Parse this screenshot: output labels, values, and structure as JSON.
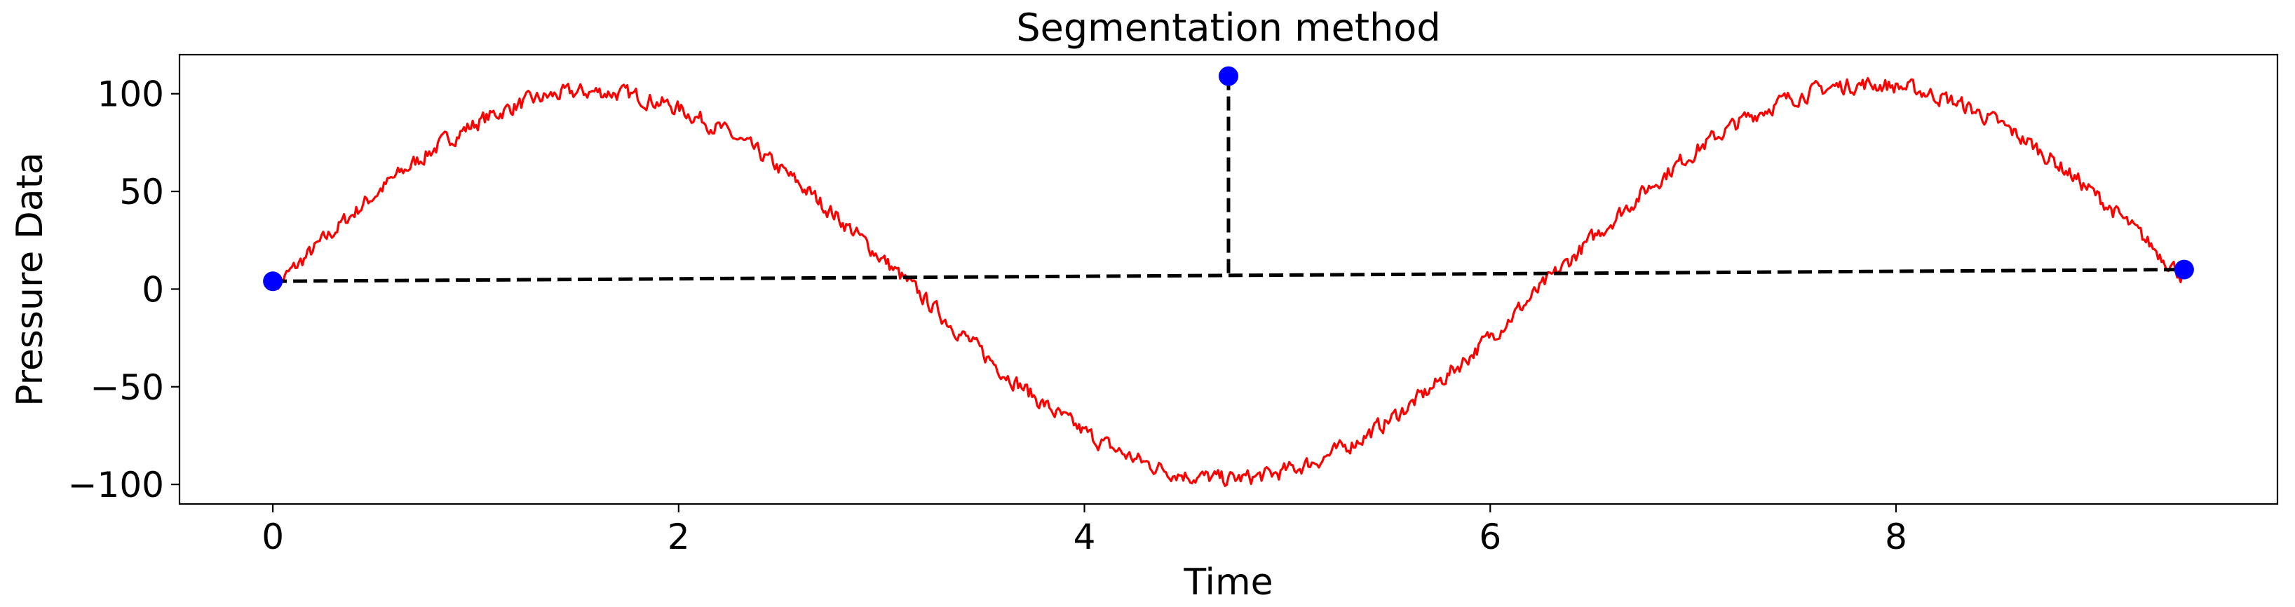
{
  "chart_data": {
    "type": "line",
    "title": "Segmentation method",
    "xlabel": "Time",
    "ylabel": "Pressure Data",
    "xlim": [
      -0.46,
      9.88
    ],
    "ylim": [
      -110,
      120
    ],
    "xticks": [
      0,
      2,
      4,
      6,
      8
    ],
    "yticks": [
      -100,
      -50,
      0,
      50,
      100
    ],
    "xtick_labels": [
      "0",
      "2",
      "4",
      "6",
      "8"
    ],
    "ytick_labels": [
      "−100",
      "−50",
      "0",
      "50",
      "100"
    ],
    "grid": false,
    "series": [
      {
        "name": "pressure",
        "color": "#ff0000",
        "x_start": 0,
        "x_end": 9.42,
        "function": "100*sin(x) + noise + 0.6*x",
        "amplitude": 100,
        "noise_amplitude": 4,
        "samples": 1100
      }
    ],
    "segmentation_points": {
      "color": "#0000ff",
      "points": [
        {
          "x": 0,
          "y": 4
        },
        {
          "x": 4.71,
          "y": 109
        },
        {
          "x": 9.42,
          "y": 10
        }
      ]
    },
    "dashed_lines": {
      "color": "#000000",
      "lines": [
        {
          "x1": 0,
          "y1": 4,
          "x2": 9.42,
          "y2": 10
        },
        {
          "x1": 4.71,
          "y1": 109,
          "x2": 4.71,
          "y2": 5
        }
      ]
    }
  }
}
